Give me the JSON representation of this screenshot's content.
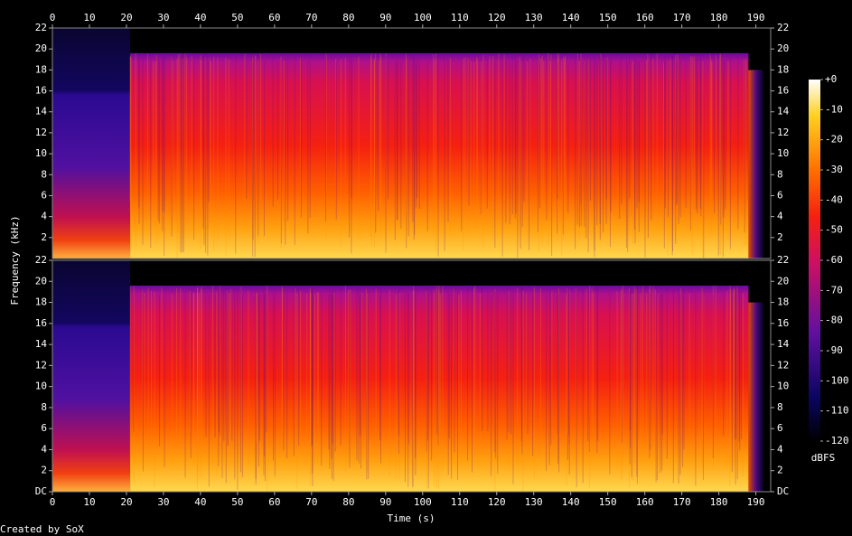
{
  "chart_data": {
    "type": "spectrogram",
    "xlabel": "Time (s)",
    "ylabel": "Frequency (kHz)",
    "xlim": [
      0,
      194
    ],
    "xticks": [
      0,
      10,
      20,
      30,
      40,
      50,
      60,
      70,
      80,
      90,
      100,
      110,
      120,
      130,
      140,
      150,
      160,
      170,
      180,
      190
    ],
    "panels": [
      {
        "ylim": [
          0,
          22
        ],
        "yticks": [
          2,
          4,
          6,
          8,
          10,
          12,
          14,
          16,
          18,
          20,
          22
        ]
      },
      {
        "ylim": [
          0,
          22
        ],
        "yticks": [
          {
            "value": 0,
            "label": "DC"
          },
          2,
          4,
          6,
          8,
          10,
          12,
          14,
          16,
          18,
          20,
          22
        ]
      }
    ],
    "colorbar": {
      "label": "dBFS",
      "lim": [
        -120,
        0
      ],
      "ticks": [
        {
          "value": 0,
          "label": "+0"
        },
        -10,
        -20,
        -30,
        -40,
        -50,
        -60,
        -70,
        -80,
        -90,
        -100,
        -110,
        -120
      ]
    }
  },
  "footer": "Created by SoX"
}
